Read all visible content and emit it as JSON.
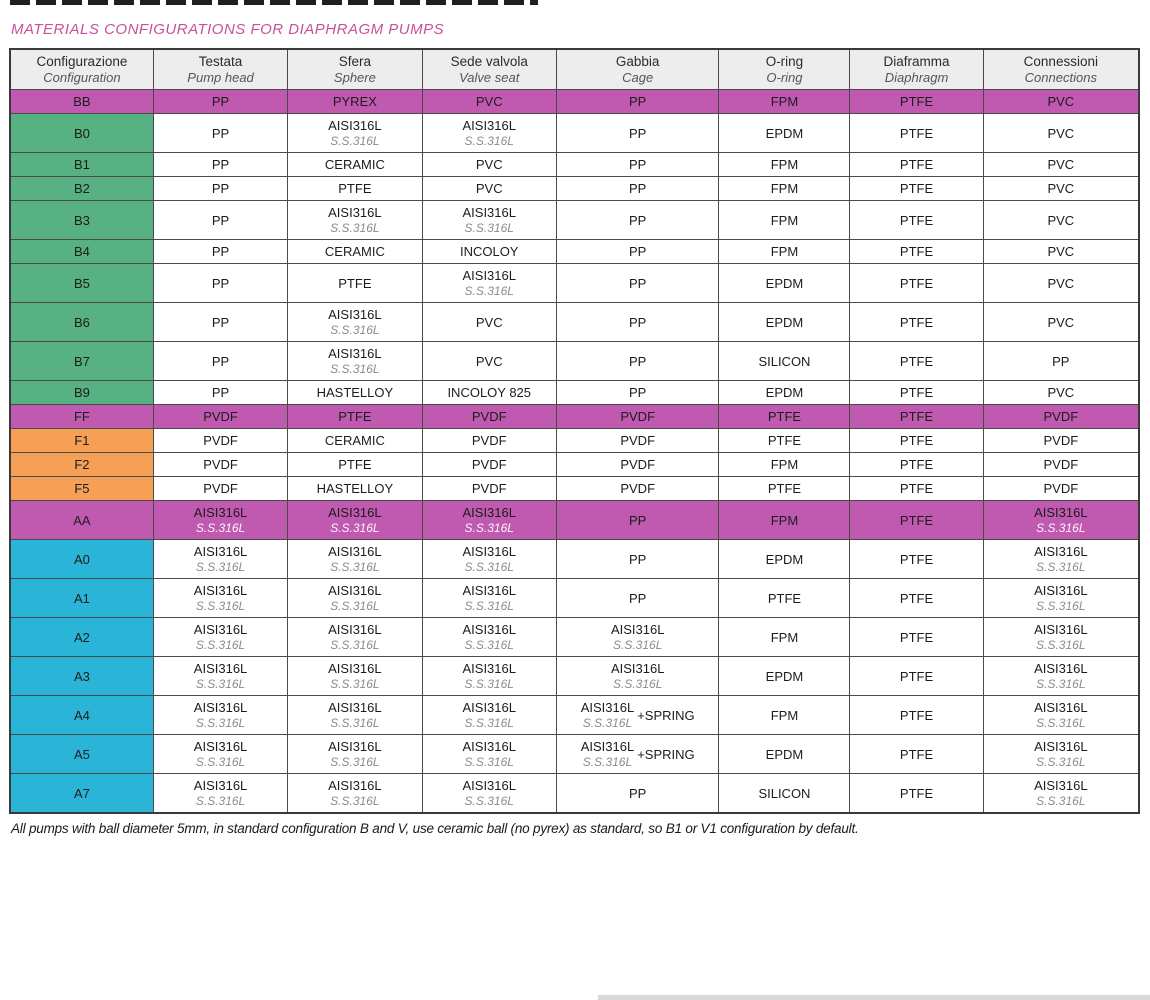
{
  "page": {
    "title": "MATERIALS CONFIGURATIONS FOR DIAPHRAGM PUMPS",
    "footnote": "All pumps with ball diameter 5mm, in standard configuration B and V, use ceramic ball (no pyrex) as standard, so B1 or V1 configuration by default.",
    "colors": {
      "magenta": "#c05ab0",
      "green": "#57b182",
      "orange": "#f5a054",
      "cyan": "#2ab5d8",
      "title_pink": "#c9509b",
      "header_bg": "#ededed"
    }
  },
  "table": {
    "columns": [
      {
        "it": "Configurazione",
        "en": "Configuration"
      },
      {
        "it": "Testata",
        "en": "Pump head"
      },
      {
        "it": "Sfera",
        "en": "Sphere"
      },
      {
        "it": "Sede valvola",
        "en": "Valve seat"
      },
      {
        "it": "Gabbia",
        "en": "Cage"
      },
      {
        "it": "O-ring",
        "en": "O-ring"
      },
      {
        "it": "Diaframma",
        "en": "Diaphragm"
      },
      {
        "it": "Connessioni",
        "en": "Connections"
      }
    ],
    "rows": [
      {
        "config": "BB",
        "type": "magenta",
        "cells": [
          "PP",
          "PYREX",
          "PVC",
          "PP",
          "FPM",
          "PTFE",
          "PVC"
        ]
      },
      {
        "config": "B0",
        "type": "green",
        "cells": [
          "PP",
          [
            "AISI316L",
            "S.S.316L"
          ],
          [
            "AISI316L",
            "S.S.316L"
          ],
          "PP",
          "EPDM",
          "PTFE",
          "PVC"
        ]
      },
      {
        "config": "B1",
        "type": "green",
        "cells": [
          "PP",
          "CERAMIC",
          "PVC",
          "PP",
          "FPM",
          "PTFE",
          "PVC"
        ]
      },
      {
        "config": "B2",
        "type": "green",
        "cells": [
          "PP",
          "PTFE",
          "PVC",
          "PP",
          "FPM",
          "PTFE",
          "PVC"
        ]
      },
      {
        "config": "B3",
        "type": "green",
        "cells": [
          "PP",
          [
            "AISI316L",
            "S.S.316L"
          ],
          [
            "AISI316L",
            "S.S.316L"
          ],
          "PP",
          "FPM",
          "PTFE",
          "PVC"
        ]
      },
      {
        "config": "B4",
        "type": "green",
        "cells": [
          "PP",
          "CERAMIC",
          "INCOLOY",
          "PP",
          "FPM",
          "PTFE",
          "PVC"
        ]
      },
      {
        "config": "B5",
        "type": "green",
        "cells": [
          "PP",
          "PTFE",
          [
            "AISI316L",
            "S.S.316L"
          ],
          "PP",
          "EPDM",
          "PTFE",
          "PVC"
        ]
      },
      {
        "config": "B6",
        "type": "green",
        "cells": [
          "PP",
          [
            "AISI316L",
            "S.S.316L"
          ],
          "PVC",
          "PP",
          "EPDM",
          "PTFE",
          "PVC"
        ]
      },
      {
        "config": "B7",
        "type": "green",
        "cells": [
          "PP",
          [
            "AISI316L",
            "S.S.316L"
          ],
          "PVC",
          "PP",
          "SILICON",
          "PTFE",
          "PP"
        ]
      },
      {
        "config": "B9",
        "type": "green",
        "cells": [
          "PP",
          "HASTELLOY",
          "INCOLOY 825",
          "PP",
          "EPDM",
          "PTFE",
          "PVC"
        ]
      },
      {
        "config": "FF",
        "type": "magenta",
        "cells": [
          "PVDF",
          "PTFE",
          "PVDF",
          "PVDF",
          "PTFE",
          "PTFE",
          "PVDF"
        ]
      },
      {
        "config": "F1",
        "type": "orange",
        "cells": [
          "PVDF",
          "CERAMIC",
          "PVDF",
          "PVDF",
          "PTFE",
          "PTFE",
          "PVDF"
        ]
      },
      {
        "config": "F2",
        "type": "orange",
        "cells": [
          "PVDF",
          "PTFE",
          "PVDF",
          "PVDF",
          "FPM",
          "PTFE",
          "PVDF"
        ]
      },
      {
        "config": "F5",
        "type": "orange",
        "cells": [
          "PVDF",
          "HASTELLOY",
          "PVDF",
          "PVDF",
          "PTFE",
          "PTFE",
          "PVDF"
        ]
      },
      {
        "config": "AA",
        "type": "magenta",
        "cells": [
          [
            "AISI316L",
            "S.S.316L"
          ],
          [
            "AISI316L",
            "S.S.316L"
          ],
          [
            "AISI316L",
            "S.S.316L"
          ],
          "PP",
          "FPM",
          "PTFE",
          [
            "AISI316L",
            "S.S.316L"
          ]
        ]
      },
      {
        "config": "A0",
        "type": "cyan",
        "cells": [
          [
            "AISI316L",
            "S.S.316L"
          ],
          [
            "AISI316L",
            "S.S.316L"
          ],
          [
            "AISI316L",
            "S.S.316L"
          ],
          "PP",
          "EPDM",
          "PTFE",
          [
            "AISI316L",
            "S.S.316L"
          ]
        ]
      },
      {
        "config": "A1",
        "type": "cyan",
        "cells": [
          [
            "AISI316L",
            "S.S.316L"
          ],
          [
            "AISI316L",
            "S.S.316L"
          ],
          [
            "AISI316L",
            "S.S.316L"
          ],
          "PP",
          "PTFE",
          "PTFE",
          [
            "AISI316L",
            "S.S.316L"
          ]
        ]
      },
      {
        "config": "A2",
        "type": "cyan",
        "cells": [
          [
            "AISI316L",
            "S.S.316L"
          ],
          [
            "AISI316L",
            "S.S.316L"
          ],
          [
            "AISI316L",
            "S.S.316L"
          ],
          [
            "AISI316L",
            "S.S.316L"
          ],
          "FPM",
          "PTFE",
          [
            "AISI316L",
            "S.S.316L"
          ]
        ]
      },
      {
        "config": "A3",
        "type": "cyan",
        "cells": [
          [
            "AISI316L",
            "S.S.316L"
          ],
          [
            "AISI316L",
            "S.S.316L"
          ],
          [
            "AISI316L",
            "S.S.316L"
          ],
          [
            "AISI316L",
            "S.S.316L"
          ],
          "EPDM",
          "PTFE",
          [
            "AISI316L",
            "S.S.316L"
          ]
        ]
      },
      {
        "config": "A4",
        "type": "cyan",
        "cells": [
          [
            "AISI316L",
            "S.S.316L"
          ],
          [
            "AISI316L",
            "S.S.316L"
          ],
          [
            "AISI316L",
            "S.S.316L"
          ],
          [
            "AISI316L",
            "S.S.316L",
            "+SPRING"
          ],
          "FPM",
          "PTFE",
          [
            "AISI316L",
            "S.S.316L"
          ]
        ]
      },
      {
        "config": "A5",
        "type": "cyan",
        "cells": [
          [
            "AISI316L",
            "S.S.316L"
          ],
          [
            "AISI316L",
            "S.S.316L"
          ],
          [
            "AISI316L",
            "S.S.316L"
          ],
          [
            "AISI316L",
            "S.S.316L",
            "+SPRING"
          ],
          "EPDM",
          "PTFE",
          [
            "AISI316L",
            "S.S.316L"
          ]
        ]
      },
      {
        "config": "A7",
        "type": "cyan",
        "cells": [
          [
            "AISI316L",
            "S.S.316L"
          ],
          [
            "AISI316L",
            "S.S.316L"
          ],
          [
            "AISI316L",
            "S.S.316L"
          ],
          "PP",
          "SILICON",
          "PTFE",
          [
            "AISI316L",
            "S.S.316L"
          ]
        ]
      }
    ]
  }
}
